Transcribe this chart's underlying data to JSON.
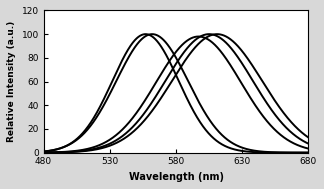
{
  "title": "",
  "xlabel": "Wavelength (nm)",
  "ylabel": "Relative Intensity (a.u.)",
  "xlim": [
    480,
    680
  ],
  "ylim": [
    0,
    120
  ],
  "xticks": [
    480,
    530,
    580,
    630,
    680
  ],
  "yticks": [
    0,
    20,
    40,
    60,
    80,
    100,
    120
  ],
  "curves": [
    {
      "peak": 557,
      "sigma": 25,
      "amplitude": 100,
      "lw": 1.4
    },
    {
      "peak": 562,
      "sigma": 27,
      "amplitude": 100,
      "lw": 1.4
    },
    {
      "peak": 597,
      "sigma": 32,
      "amplitude": 98,
      "lw": 1.4
    },
    {
      "peak": 605,
      "sigma": 33,
      "amplitude": 100,
      "lw": 1.4
    },
    {
      "peak": 611,
      "sigma": 34,
      "amplitude": 100,
      "lw": 1.4
    }
  ],
  "line_color": "#000000",
  "plot_bg": "#ffffff",
  "figure_bg": "#d8d8d8"
}
